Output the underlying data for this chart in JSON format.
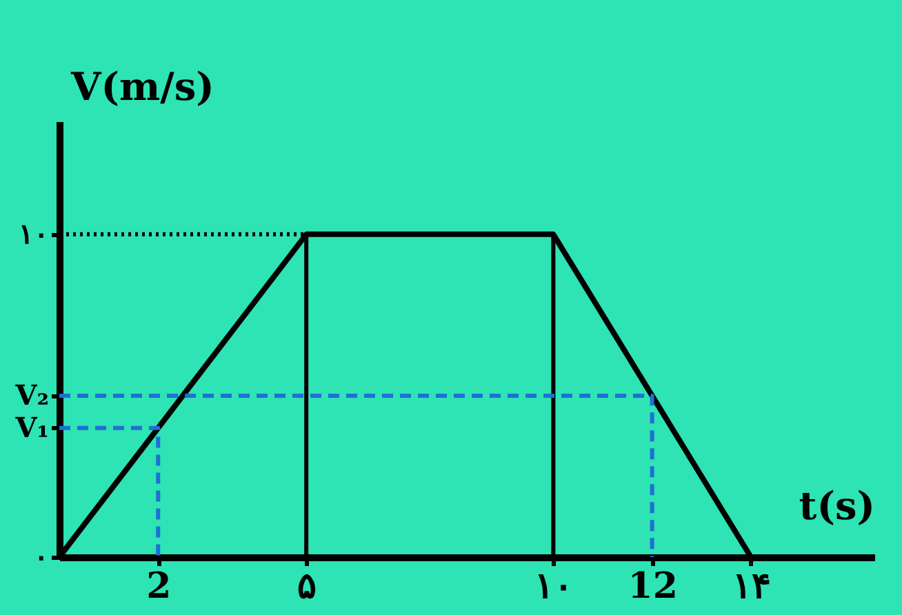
{
  "chart_data": {
    "type": "line",
    "xlabel": "t(s)",
    "ylabel": "V(m/s)",
    "xlim": [
      0,
      16.5
    ],
    "ylim": [
      0,
      13.5
    ],
    "xticks": [
      2,
      {
        "value": 5,
        "label": "۵"
      },
      {
        "value": 10,
        "label": "۱۰"
      },
      12,
      {
        "value": 14,
        "label": "۱۴"
      }
    ],
    "yticks": [
      {
        "value": 0,
        "label": "۰"
      },
      {
        "value": 4,
        "label": "V₁"
      },
      {
        "value": 5,
        "label": "V₂"
      },
      {
        "value": 10,
        "label": "۱۰"
      }
    ],
    "grid": false,
    "marker": "none",
    "series": [
      {
        "color": "#000000",
        "x": [
          0,
          5,
          10,
          14
        ],
        "values": [
          0,
          10,
          10,
          0
        ],
        "line_style": "solid"
      },
      {
        "color": "#000000",
        "x": [
          5,
          5
        ],
        "values": [
          0,
          10
        ],
        "line_style": "solid"
      },
      {
        "color": "#000000",
        "x": [
          10,
          10
        ],
        "values": [
          0,
          10
        ],
        "line_style": "solid"
      },
      {
        "color": "#000000",
        "x": [
          0,
          5
        ],
        "values": [
          10,
          10
        ],
        "line_style": "dotted"
      },
      {
        "color": "#1f6fd6",
        "x": [
          0,
          2,
          2
        ],
        "values": [
          4,
          4,
          0
        ],
        "line_style": "dashed"
      },
      {
        "color": "#1f6fd6",
        "x": [
          0,
          12,
          12
        ],
        "values": [
          5,
          5,
          0
        ],
        "line_style": "dashed"
      }
    ]
  }
}
